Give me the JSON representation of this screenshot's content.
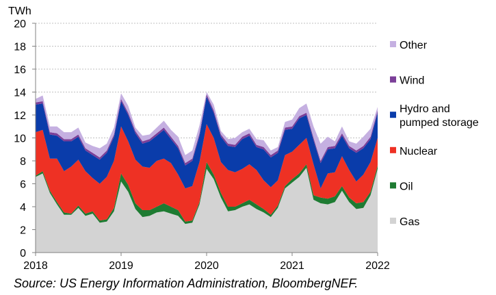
{
  "source": "Source: US Energy Information Administration, BloombergNEF.",
  "chart_data": {
    "type": "area",
    "stacked": true,
    "ylabel": "TWh",
    "ylim": [
      0,
      20
    ],
    "yticks": [
      0,
      2,
      4,
      6,
      8,
      10,
      12,
      14,
      16,
      18,
      20
    ],
    "xlim": [
      2018,
      2022
    ],
    "xticks": [
      2018,
      2019,
      2020,
      2021,
      2022
    ],
    "grid": "horizontal",
    "legend_position": "right",
    "x": [
      2018.0,
      2018.083,
      2018.167,
      2018.25,
      2018.333,
      2018.417,
      2018.5,
      2018.583,
      2018.667,
      2018.75,
      2018.833,
      2018.917,
      2019.0,
      2019.083,
      2019.167,
      2019.25,
      2019.333,
      2019.417,
      2019.5,
      2019.583,
      2019.667,
      2019.75,
      2019.833,
      2019.917,
      2020.0,
      2020.083,
      2020.167,
      2020.25,
      2020.333,
      2020.417,
      2020.5,
      2020.583,
      2020.667,
      2020.75,
      2020.833,
      2020.917,
      2021.0,
      2021.083,
      2021.167,
      2021.25,
      2021.333,
      2021.417,
      2021.5,
      2021.583,
      2021.667,
      2021.75,
      2021.833,
      2021.917,
      2022.0
    ],
    "series": [
      {
        "name": "Gas",
        "color": "#d3d3d3",
        "values": [
          6.6,
          6.9,
          5.2,
          4.2,
          3.3,
          3.3,
          3.9,
          3.2,
          3.4,
          2.6,
          2.7,
          3.6,
          6.2,
          5.3,
          3.8,
          3.1,
          3.2,
          3.5,
          3.6,
          3.4,
          3.2,
          2.5,
          2.6,
          4.2,
          7.3,
          6.4,
          4.8,
          3.6,
          3.7,
          4.0,
          4.2,
          3.8,
          3.5,
          3.1,
          3.9,
          5.6,
          6.1,
          6.6,
          7.4,
          4.6,
          4.3,
          4.2,
          4.4,
          5.4,
          4.4,
          3.8,
          3.9,
          5.0,
          7.3
        ]
      },
      {
        "name": "Oil",
        "color": "#1e7b32",
        "values": [
          0.1,
          0.2,
          0.2,
          0.2,
          0.2,
          0.1,
          0.2,
          0.2,
          0.2,
          0.2,
          0.2,
          0.3,
          0.7,
          0.6,
          0.5,
          0.6,
          0.5,
          0.5,
          0.7,
          0.6,
          0.5,
          0.2,
          0.2,
          0.2,
          0.6,
          0.4,
          0.4,
          0.4,
          0.3,
          0.3,
          0.4,
          0.4,
          0.3,
          0.2,
          0.2,
          0.2,
          0.3,
          0.3,
          0.3,
          0.4,
          0.5,
          0.5,
          0.5,
          0.4,
          0.4,
          0.5,
          0.5,
          0.3,
          0.3
        ]
      },
      {
        "name": "Nuclear",
        "color": "#ee3124",
        "values": [
          3.8,
          3.6,
          2.8,
          3.8,
          3.6,
          4.1,
          4.0,
          3.7,
          2.9,
          3.2,
          3.7,
          4.1,
          4.1,
          3.8,
          3.8,
          3.8,
          3.7,
          4.0,
          3.9,
          3.8,
          3.1,
          2.9,
          3.0,
          3.5,
          3.3,
          3.2,
          2.7,
          3.2,
          3.0,
          3.0,
          3.1,
          3.0,
          2.5,
          2.4,
          2.2,
          2.7,
          2.4,
          2.5,
          2.3,
          2.7,
          0.8,
          2.2,
          2.1,
          2.6,
          2.4,
          1.9,
          2.4,
          2.6,
          2.4
        ]
      },
      {
        "name": "Hydro and pumped storage",
        "color": "#0a3caa",
        "values": [
          2.4,
          2.3,
          2.1,
          2.0,
          2.6,
          2.2,
          2.0,
          1.8,
          2.0,
          2.1,
          2.1,
          2.1,
          2.2,
          2.3,
          2.3,
          2.0,
          2.3,
          2.2,
          2.5,
          2.1,
          2.3,
          2.0,
          2.2,
          2.3,
          2.4,
          2.2,
          2.2,
          2.1,
          2.2,
          2.6,
          2.5,
          2.0,
          2.7,
          2.6,
          2.4,
          2.2,
          2.0,
          2.3,
          2.0,
          2.1,
          2.2,
          2.1,
          2.1,
          1.8,
          1.9,
          2.5,
          2.3,
          2.0,
          2.2
        ]
      },
      {
        "name": " Wind",
        "color": "#7b3f98",
        "values": [
          0.2,
          0.2,
          0.2,
          0.2,
          0.2,
          0.2,
          0.2,
          0.2,
          0.2,
          0.2,
          0.2,
          0.2,
          0.2,
          0.2,
          0.2,
          0.2,
          0.2,
          0.2,
          0.2,
          0.2,
          0.2,
          0.2,
          0.2,
          0.2,
          0.2,
          0.2,
          0.2,
          0.2,
          0.2,
          0.2,
          0.2,
          0.2,
          0.2,
          0.2,
          0.2,
          0.2,
          0.2,
          0.2,
          0.2,
          0.2,
          0.2,
          0.2,
          0.2,
          0.2,
          0.2,
          0.2,
          0.2,
          0.2,
          0.2
        ]
      },
      {
        "name": "Other",
        "color": "#c5b0e1",
        "values": [
          0.3,
          0.5,
          0.5,
          0.6,
          0.6,
          0.6,
          0.6,
          0.5,
          0.6,
          0.8,
          0.6,
          0.6,
          0.5,
          0.6,
          0.3,
          0.5,
          0.4,
          0.5,
          0.6,
          0.6,
          0.8,
          0.7,
          0.7,
          0.7,
          0.2,
          0.5,
          0.3,
          0.4,
          0.6,
          0.4,
          0.4,
          0.5,
          0.6,
          0.4,
          0.3,
          0.5,
          0.6,
          0.7,
          0.8,
          1.0,
          1.5,
          0.9,
          0.4,
          0.6,
          0.4,
          0.6,
          0.8,
          0.7,
          0.3
        ]
      }
    ],
    "legend_order": [
      5,
      4,
      3,
      2,
      1,
      0
    ]
  }
}
